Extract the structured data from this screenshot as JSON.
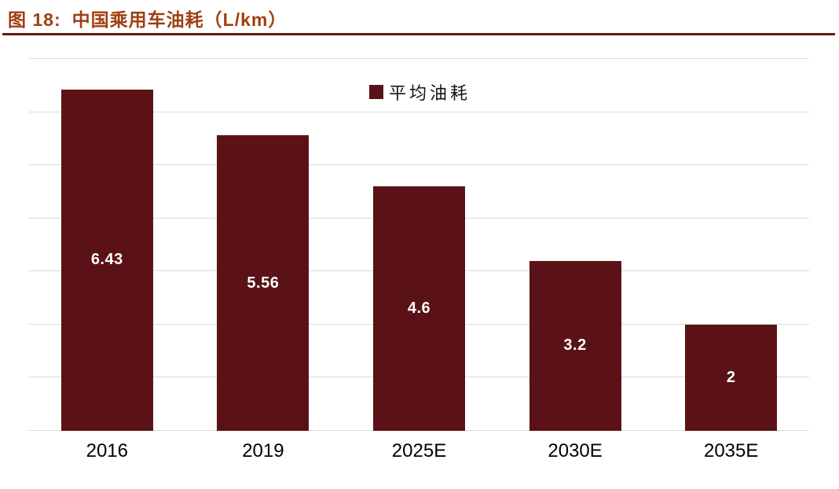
{
  "figure": {
    "label": "图 18:",
    "title": "中国乘用车油耗（L/km）"
  },
  "legend": {
    "label": "平均油耗"
  },
  "colors": {
    "bar": "#5a1216",
    "title": "#9f3f12",
    "rule": "#6a1515",
    "gridline": "#d9d9d9",
    "value_label": "#ffffff"
  },
  "chart_data": {
    "type": "bar",
    "title": "中国乘用车油耗（L/km）",
    "categories": [
      "2016",
      "2019",
      "2025E",
      "2030E",
      "2035E"
    ],
    "series": [
      {
        "name": "平均油耗",
        "values": [
          6.43,
          5.56,
          4.6,
          3.2,
          2
        ]
      }
    ],
    "value_labels": [
      "6.43",
      "5.56",
      "4.6",
      "3.2",
      "2"
    ],
    "xlabel": "",
    "ylabel": "",
    "ylim": [
      0,
      7
    ],
    "grid_step": 1,
    "grid": true,
    "y_axis_labels_visible": false,
    "legend_position": "top-center",
    "bar_width_frac_of_slot": 0.59
  }
}
